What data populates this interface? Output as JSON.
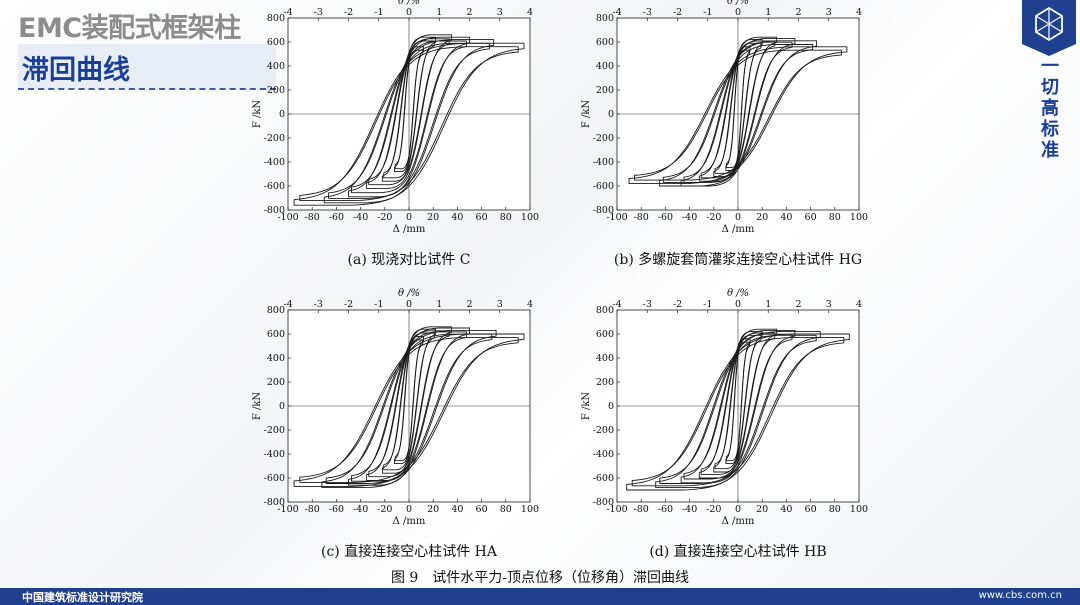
{
  "page": {
    "title_main": "EMC装配式框架柱",
    "title_sub": "滞回曲线",
    "logo_text": "一切高标准",
    "footer_left": "中国建筑标准设计研究院",
    "footer_right": "www.cbs.com.cn",
    "figure_caption": "图 9　试件水平力-顶点位移（位移角）滞回曲线",
    "colors": {
      "brand": "#1f3f8f",
      "title_gray": "#8c8c8c",
      "title_blue": "#1a3f97"
    }
  },
  "chart_data": [
    {
      "type": "line",
      "caption": "(a)  现浇对比试件 C",
      "xlabel": "Δ /mm",
      "ylabel": "F /kN",
      "top_label": "θ /%",
      "xlim": [
        -100,
        100
      ],
      "ylim": [
        -800,
        800
      ],
      "x_ticks": [
        "-100",
        "-80",
        "-60",
        "-40",
        "-20",
        "0",
        "20",
        "40",
        "60",
        "80",
        "100"
      ],
      "y_ticks": [
        "-800",
        "-600",
        "-400",
        "-200",
        "0",
        "200",
        "400",
        "600",
        "800"
      ],
      "top_ticks": [
        "-4",
        "-3",
        "-2",
        "-1",
        "0",
        "1",
        "2",
        "3",
        "4"
      ],
      "peak_loads_kN": [
        {
          "disp": 12,
          "pos": 560,
          "neg": -480
        },
        {
          "disp": 22,
          "pos": 640,
          "neg": -560
        },
        {
          "disp": 35,
          "pos": 660,
          "neg": -620
        },
        {
          "disp": 50,
          "pos": 640,
          "neg": -690
        },
        {
          "disp": 70,
          "pos": 620,
          "neg": -740
        },
        {
          "disp": 95,
          "pos": 590,
          "neg": -760
        }
      ]
    },
    {
      "type": "line",
      "caption": "(b)  多螺旋套筒灌浆连接空心柱试件 HG",
      "xlabel": "Δ /mm",
      "ylabel": "F /kN",
      "top_label": "θ /%",
      "xlim": [
        -100,
        100
      ],
      "ylim": [
        -800,
        800
      ],
      "x_ticks": [
        "-100",
        "-80",
        "-60",
        "-40",
        "-20",
        "0",
        "20",
        "40",
        "60",
        "80",
        "100"
      ],
      "y_ticks": [
        "-800",
        "-600",
        "-400",
        "-200",
        "0",
        "200",
        "400",
        "600",
        "800"
      ],
      "top_ticks": [
        "-4",
        "-3",
        "-2",
        "-1",
        "0",
        "1",
        "2",
        "3",
        "4"
      ],
      "peak_loads_kN": [
        {
          "disp": 10,
          "pos": 560,
          "neg": -470
        },
        {
          "disp": 20,
          "pos": 620,
          "neg": -520
        },
        {
          "disp": 32,
          "pos": 640,
          "neg": -560
        },
        {
          "disp": 47,
          "pos": 630,
          "neg": -600
        },
        {
          "disp": 65,
          "pos": 610,
          "neg": -600
        },
        {
          "disp": 90,
          "pos": 560,
          "neg": -580
        }
      ]
    },
    {
      "type": "line",
      "caption": "(c)  直接连接空心柱试件 HA",
      "xlabel": "Δ /mm",
      "ylabel": "F /kN",
      "top_label": "θ /%",
      "xlim": [
        -100,
        100
      ],
      "ylim": [
        -800,
        800
      ],
      "x_ticks": [
        "-100",
        "-80",
        "-60",
        "-40",
        "-20",
        "0",
        "20",
        "40",
        "60",
        "80",
        "100"
      ],
      "y_ticks": [
        "-800",
        "-600",
        "-400",
        "-200",
        "0",
        "200",
        "400",
        "600",
        "800"
      ],
      "top_ticks": [
        "-4",
        "-3",
        "-2",
        "-1",
        "0",
        "1",
        "2",
        "3",
        "4"
      ],
      "peak_loads_kN": [
        {
          "disp": 12,
          "pos": 580,
          "neg": -480
        },
        {
          "disp": 22,
          "pos": 640,
          "neg": -560
        },
        {
          "disp": 35,
          "pos": 660,
          "neg": -620
        },
        {
          "disp": 50,
          "pos": 650,
          "neg": -660
        },
        {
          "disp": 72,
          "pos": 630,
          "neg": -680
        },
        {
          "disp": 95,
          "pos": 600,
          "neg": -670
        }
      ]
    },
    {
      "type": "line",
      "caption": "(d)  直接连接空心柱试件 HB",
      "xlabel": "Δ /mm",
      "ylabel": "F /kN",
      "top_label": "θ /%",
      "xlim": [
        -100,
        100
      ],
      "ylim": [
        -800,
        800
      ],
      "x_ticks": [
        "-100",
        "-80",
        "-60",
        "-40",
        "-20",
        "0",
        "20",
        "40",
        "60",
        "80",
        "100"
      ],
      "y_ticks": [
        "-800",
        "-600",
        "-400",
        "-200",
        "0",
        "200",
        "400",
        "600",
        "800"
      ],
      "top_ticks": [
        "-4",
        "-3",
        "-2",
        "-1",
        "0",
        "1",
        "2",
        "3",
        "4"
      ],
      "peak_loads_kN": [
        {
          "disp": 10,
          "pos": 560,
          "neg": -480
        },
        {
          "disp": 20,
          "pos": 620,
          "neg": -550
        },
        {
          "disp": 32,
          "pos": 640,
          "neg": -600
        },
        {
          "disp": 47,
          "pos": 630,
          "neg": -640
        },
        {
          "disp": 68,
          "pos": 620,
          "neg": -680
        },
        {
          "disp": 92,
          "pos": 600,
          "neg": -700
        }
      ]
    }
  ]
}
